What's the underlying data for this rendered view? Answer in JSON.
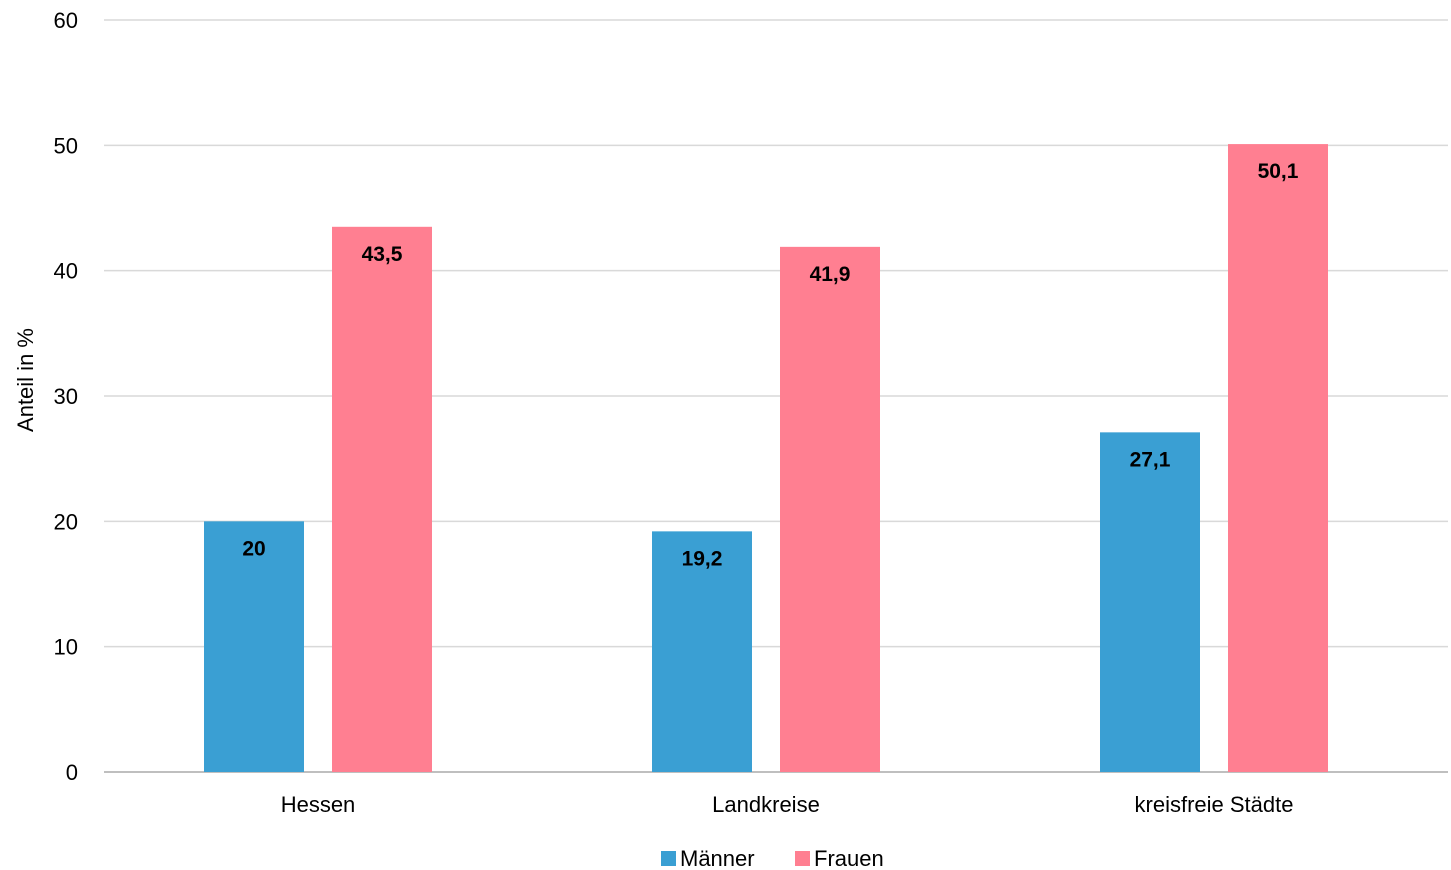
{
  "chart_data": {
    "type": "bar",
    "title": "",
    "xlabel": "",
    "ylabel": "Anteil in %",
    "categories": [
      "Hessen",
      "Landkreise",
      "kreisfreie Städte"
    ],
    "series": [
      {
        "name": "Männer",
        "color": "#3a9fd3",
        "values": [
          20,
          19.2,
          27.1
        ],
        "labels": [
          "20",
          "19,2",
          "27,1"
        ]
      },
      {
        "name": "Frauen",
        "color": "#ff7f91",
        "values": [
          43.5,
          41.9,
          50.1
        ],
        "labels": [
          "43,5",
          "41,9",
          "50,1"
        ]
      }
    ],
    "ylim": [
      0,
      60
    ],
    "yticks": [
      0,
      10,
      20,
      30,
      40,
      50,
      60
    ],
    "grid": true,
    "legend_position": "bottom"
  }
}
